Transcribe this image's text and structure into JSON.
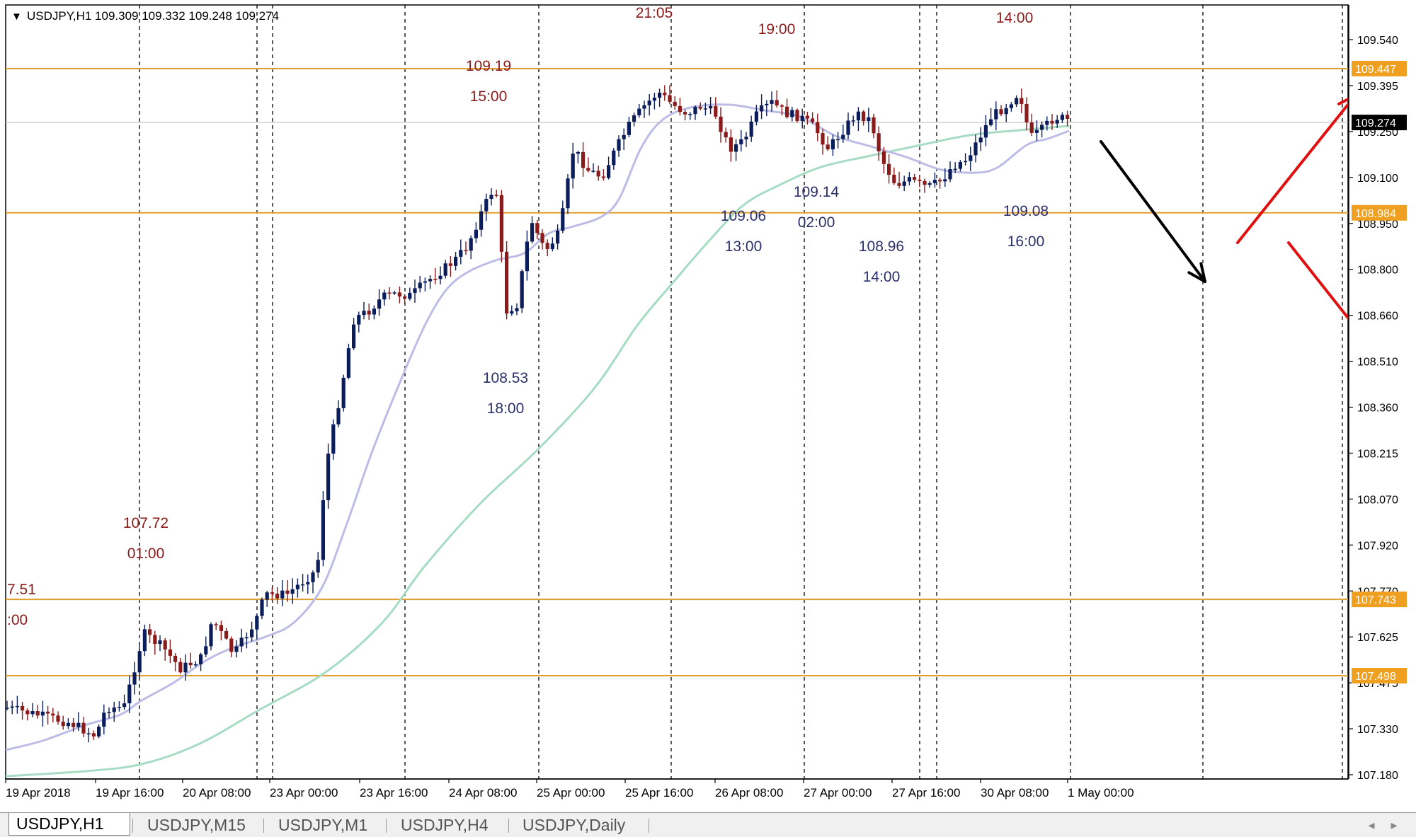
{
  "header": {
    "collapse_glyph": "▼",
    "title": "USDJPY,H1  109.309 109.332 109.248 109.274"
  },
  "price_axis": {
    "labels": [
      "109.540",
      "109.395",
      "109.250",
      "109.100",
      "108.950",
      "108.800",
      "108.660",
      "108.510",
      "108.360",
      "108.215",
      "108.070",
      "107.920",
      "107.770",
      "107.625",
      "107.475",
      "107.330",
      "107.180"
    ],
    "level_tags": [
      {
        "label": "109.447",
        "value": 109.447,
        "color": "#f0a020"
      },
      {
        "label": "108.984",
        "value": 108.984,
        "color": "#f0a020"
      },
      {
        "label": "107.743",
        "value": 107.743,
        "color": "#f0a020"
      },
      {
        "label": "107.498",
        "value": 107.498,
        "color": "#f0a020"
      }
    ],
    "current_price_tag": {
      "label": "109.274",
      "value": 109.274,
      "color": "#000000"
    }
  },
  "time_axis": {
    "labels": [
      "19 Apr 2018",
      "19 Apr 16:00",
      "20 Apr 08:00",
      "23 Apr 00:00",
      "23 Apr 16:00",
      "24 Apr 08:00",
      "25 Apr 00:00",
      "25 Apr 16:00",
      "26 Apr 08:00",
      "27 Apr 00:00",
      "27 Apr 16:00",
      "30 Apr 08:00",
      "1 May 00:00"
    ]
  },
  "annotations": [
    {
      "lines": [
        "21:05"
      ],
      "color": "#8b1a1a"
    },
    {
      "lines": [
        "19:00"
      ],
      "color": "#8b1a1a"
    },
    {
      "lines": [
        "14:00"
      ],
      "color": "#8b1a1a"
    },
    {
      "lines": [
        "109.19",
        "15:00"
      ],
      "color": "#8b1a1a"
    },
    {
      "lines": [
        "107.72",
        "01:00"
      ],
      "color": "#8b1a1a"
    },
    {
      "lines": [
        "7.51",
        ":00"
      ],
      "color": "#8b1a1a"
    },
    {
      "lines": [
        "108.53",
        "18:00"
      ],
      "color": "#2b2f6b"
    },
    {
      "lines": [
        "109.06",
        "13:00"
      ],
      "color": "#2b2f6b"
    },
    {
      "lines": [
        "109.14",
        "02:00"
      ],
      "color": "#2b2f6b"
    },
    {
      "lines": [
        "108.96",
        "14:00"
      ],
      "color": "#2b2f6b"
    },
    {
      "lines": [
        "109.08",
        "16:00"
      ],
      "color": "#2b2f6b"
    }
  ],
  "colors": {
    "bull_candle": "#0b1e5b",
    "bear_candle": "#8b1a1a",
    "level_line": "#e0a030",
    "fast_ma": "#bcbce6",
    "slow_ma": "#a6dcc4",
    "arrow_black": "#000000",
    "arrow_red": "#e01010"
  },
  "tabs": [
    {
      "label": "USDJPY,H1",
      "active": true
    },
    {
      "label": "USDJPY,M15",
      "active": false
    },
    {
      "label": "USDJPY,M1",
      "active": false
    },
    {
      "label": "USDJPY,H4",
      "active": false
    },
    {
      "label": "USDJPY,Daily",
      "active": false
    }
  ],
  "tab_scroll": {
    "left": "◂",
    "right": "▸"
  }
}
